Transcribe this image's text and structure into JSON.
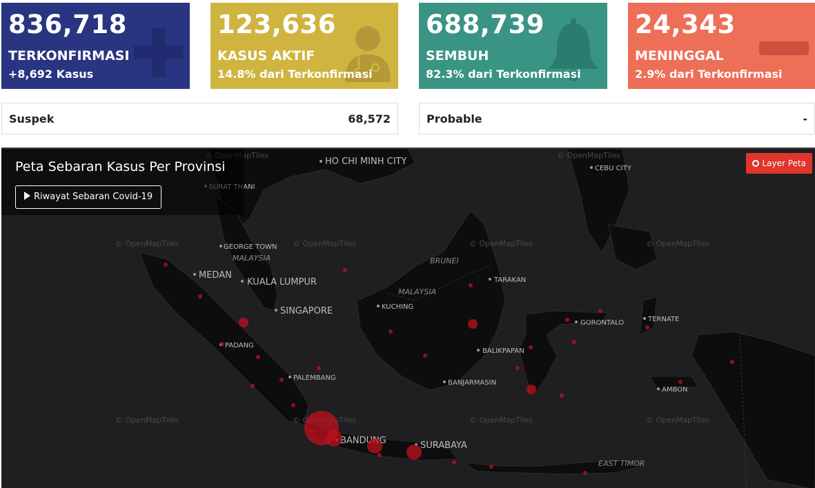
{
  "cards": [
    {
      "number": "836,718",
      "label": "TERKONFIRMASI",
      "sub": "+8,692 Kasus",
      "icon": "plus-icon",
      "color": "#293580"
    },
    {
      "number": "123,636",
      "label": "KASUS AKTIF",
      "sub": "14.8% dari Terkonfirmasi",
      "icon": "doctor-icon",
      "color": "#d0b440"
    },
    {
      "number": "688,739",
      "label": "SEMBUH",
      "sub": "82.3% dari Terkonfirmasi",
      "icon": "bell-icon",
      "color": "#3a9484"
    },
    {
      "number": "24,343",
      "label": "MENINGGAL",
      "sub": "2.9% dari Terkonfirmasi",
      "icon": "minus-icon",
      "color": "#ed6f57"
    }
  ],
  "stats": [
    {
      "label": "Suspek",
      "value": "68,572"
    },
    {
      "label": "Probable",
      "value": "-"
    }
  ],
  "map": {
    "title": "Peta Sebaran Kasus Per Provinsi",
    "history_button": "Riwayat Sebaran Covid-19",
    "layer_button": "Layer Peta",
    "attribution": "© OpenMapTiles",
    "marker_color": "#c0101e",
    "cities": [
      "HO CHI MINH CITY",
      "SURAT THANI",
      "CEBU CITY",
      "GEORGE TOWN",
      "MEDAN",
      "KUALA LUMPUR",
      "SINGAPORE",
      "KUCHING",
      "TARAKAN",
      "GORONTALO",
      "TERNATE",
      "PADANG",
      "BALIKPAPAN",
      "PALEMBANG",
      "BANJARMASIN",
      "AMBON",
      "BANDUNG",
      "SURABAYA"
    ],
    "countries": [
      "MALAYSIA",
      "BRUNEI",
      "MALAYSIA",
      "EAST TIMOR"
    ]
  }
}
